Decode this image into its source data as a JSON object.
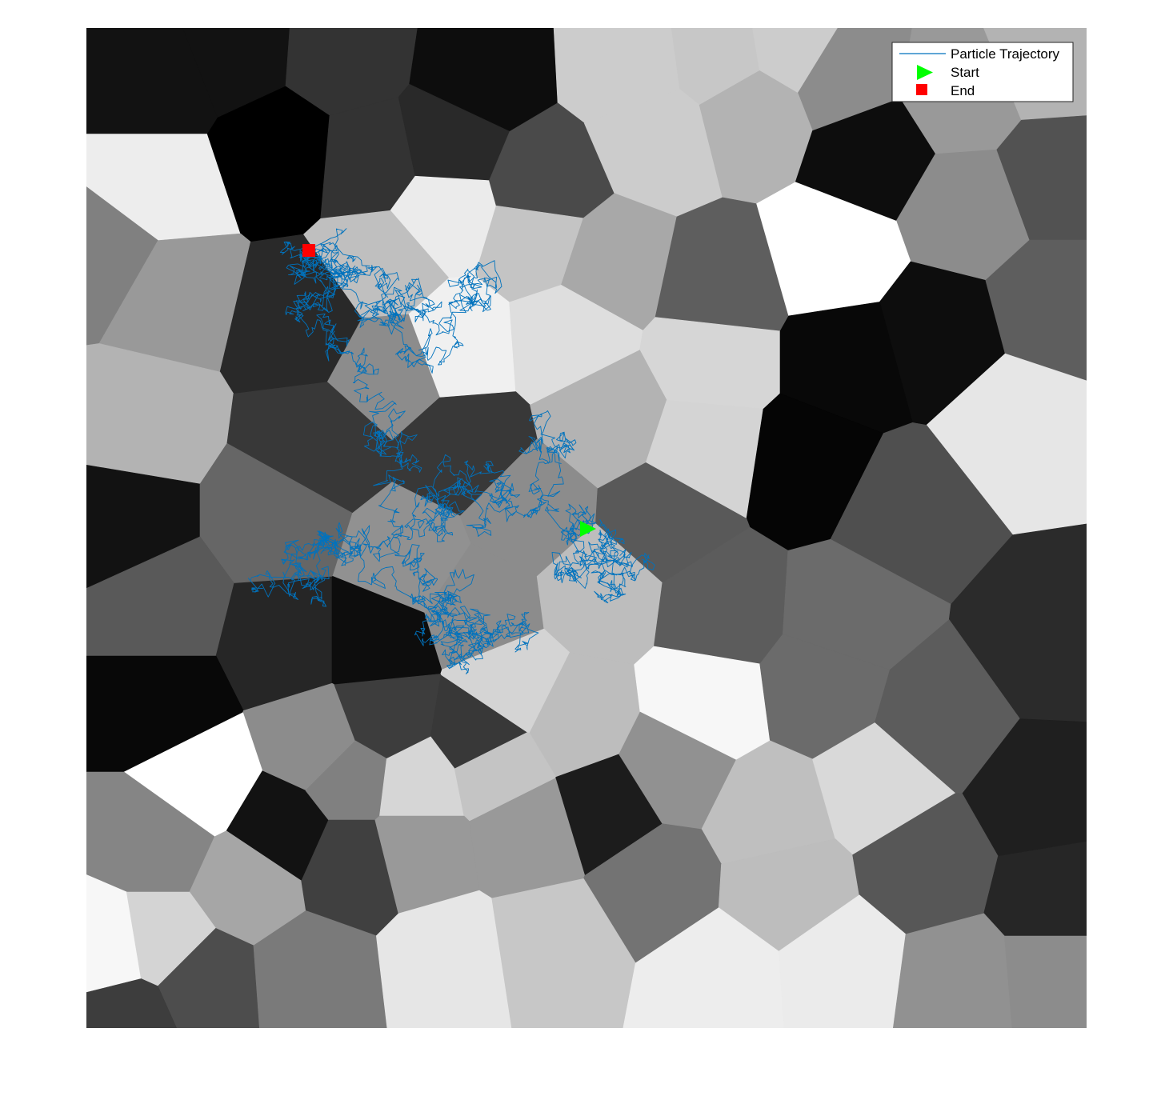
{
  "chart_data": {
    "type": "scatter",
    "title": "",
    "xlabel": "",
    "ylabel": "",
    "axes_visible": false,
    "background": "grayscale-voronoi-cells",
    "legend": {
      "placement": "top-right",
      "entries": [
        {
          "label": "Particle Trajectory",
          "marker": "line",
          "color": "#0072BD"
        },
        {
          "label": "Start",
          "marker": "right-triangle",
          "color": "#00FF00"
        },
        {
          "label": "End",
          "marker": "square",
          "color": "#FF0000"
        }
      ]
    },
    "series": [
      {
        "name": "Particle Trajectory",
        "kind": "line",
        "color": "#0072BD"
      },
      {
        "name": "Start",
        "kind": "marker",
        "color": "#00FF00"
      },
      {
        "name": "End",
        "kind": "marker",
        "color": "#FF0000"
      }
    ]
  }
}
